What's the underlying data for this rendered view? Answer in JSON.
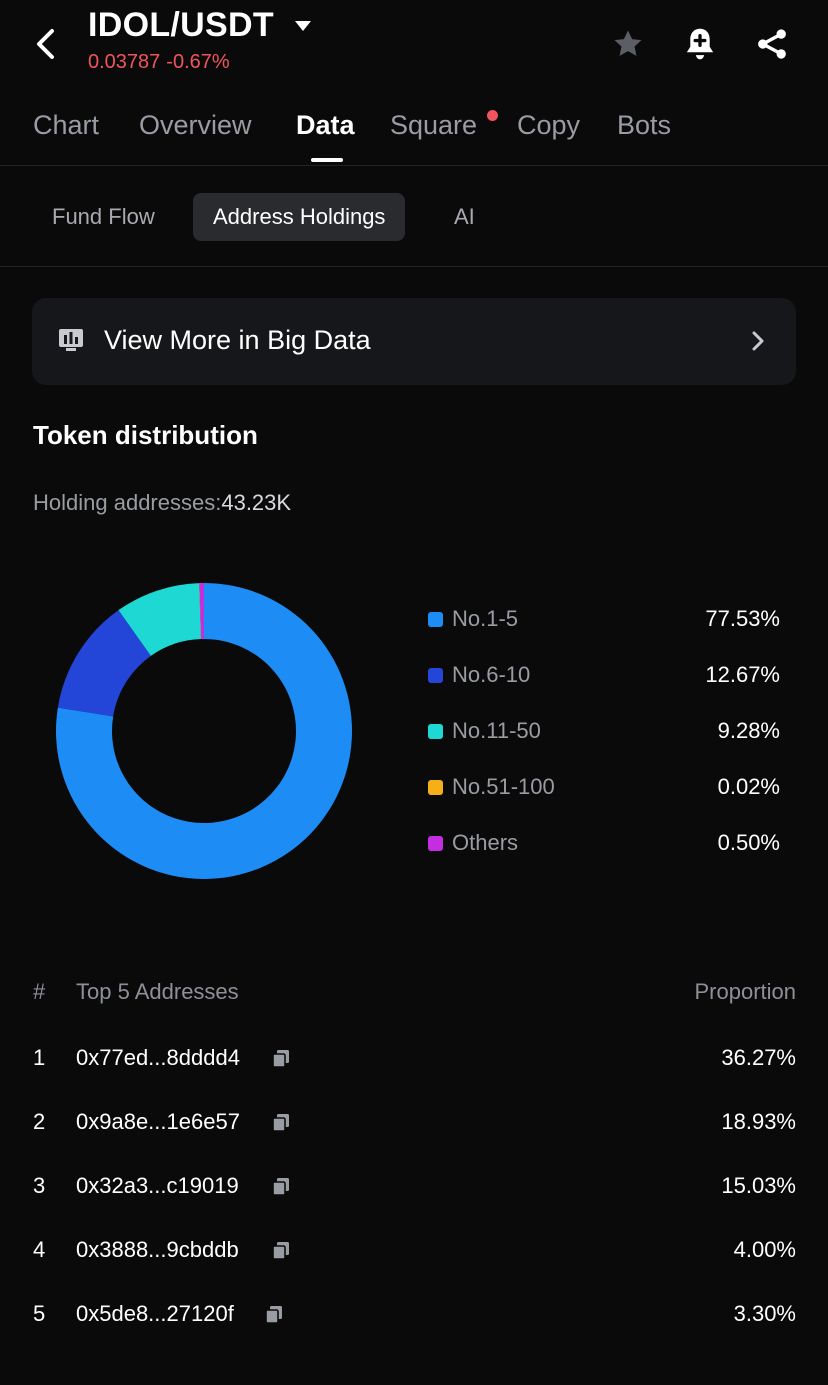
{
  "header": {
    "pair": "IDOL/USDT",
    "price": "0.03787",
    "change": "-0.67%",
    "icons": [
      "back-arrow-icon",
      "caret-down-icon",
      "star-icon",
      "bell-plus-icon",
      "share-icon"
    ]
  },
  "main_tabs": [
    {
      "label": "Chart"
    },
    {
      "label": "Overview"
    },
    {
      "label": "Data",
      "active": true
    },
    {
      "label": "Square",
      "badge": "red-dot"
    },
    {
      "label": "Copy"
    },
    {
      "label": "Bots"
    }
  ],
  "sub_tabs": [
    {
      "label": "Fund Flow"
    },
    {
      "label": "Address Holdings",
      "active": true
    },
    {
      "label": "AI"
    }
  ],
  "banner": {
    "label": "View More in Big Data",
    "icon": "big-data-icon",
    "arrow": "chevron-right-icon"
  },
  "distribution": {
    "title": "Token distribution",
    "holding_label": "Holding addresses:",
    "holding_value": "43.23K"
  },
  "chart_data": {
    "type": "pie",
    "donut": true,
    "categories": [
      "No.1-5",
      "No.6-10",
      "No.11-50",
      "No.51-100",
      "Others"
    ],
    "values": [
      77.53,
      12.67,
      9.28,
      0.02,
      0.5
    ],
    "value_labels": [
      "77.53%",
      "12.67%",
      "9.28%",
      "0.02%",
      "0.50%"
    ],
    "colors": [
      "#1e8cf5",
      "#2346d8",
      "#1ed8d4",
      "#f5b017",
      "#c42ee0"
    ],
    "legend_position": "right"
  },
  "table": {
    "header": {
      "rank": "#",
      "address": "Top 5 Addresses",
      "proportion": "Proportion"
    },
    "rows": [
      {
        "rank": "1",
        "address": "0x77ed...8dddd4",
        "proportion": "36.27%"
      },
      {
        "rank": "2",
        "address": "0x9a8e...1e6e57",
        "proportion": "18.93%"
      },
      {
        "rank": "3",
        "address": "0x32a3...c19019",
        "proportion": "15.03%"
      },
      {
        "rank": "4",
        "address": "0x3888...9cbddb",
        "proportion": "4.00%"
      },
      {
        "rank": "5",
        "address": "0x5de8...27120f",
        "proportion": "3.30%"
      }
    ],
    "copy_icon": "copy-icon"
  }
}
